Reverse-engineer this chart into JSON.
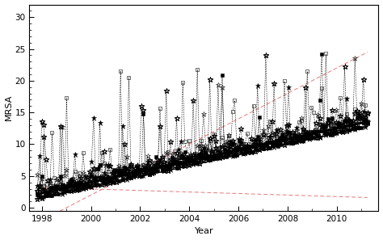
{
  "xlabel": "Year",
  "ylabel": "MRSA",
  "xlim": [
    1997.5,
    2011.7
  ],
  "ylim": [
    -0.5,
    32
  ],
  "yticks": [
    0,
    5,
    10,
    15,
    20,
    25,
    30
  ],
  "xticks": [
    1998,
    2000,
    2002,
    2004,
    2006,
    2008,
    2010
  ],
  "seed": 12345,
  "start_year": 1997.83,
  "end_year": 2011.25,
  "n_points_per_series": 160,
  "n_series": 6,
  "background_color": "#ffffff",
  "trend_line1": {
    "a": 1.5,
    "b": 0.85
  },
  "trend_line2": {
    "a": 2.3,
    "b": 0.85
  },
  "ci_upper": {
    "a": -3.0,
    "b": 2.5
  },
  "ci_lower": {
    "a": 3.5,
    "b": -0.15
  }
}
